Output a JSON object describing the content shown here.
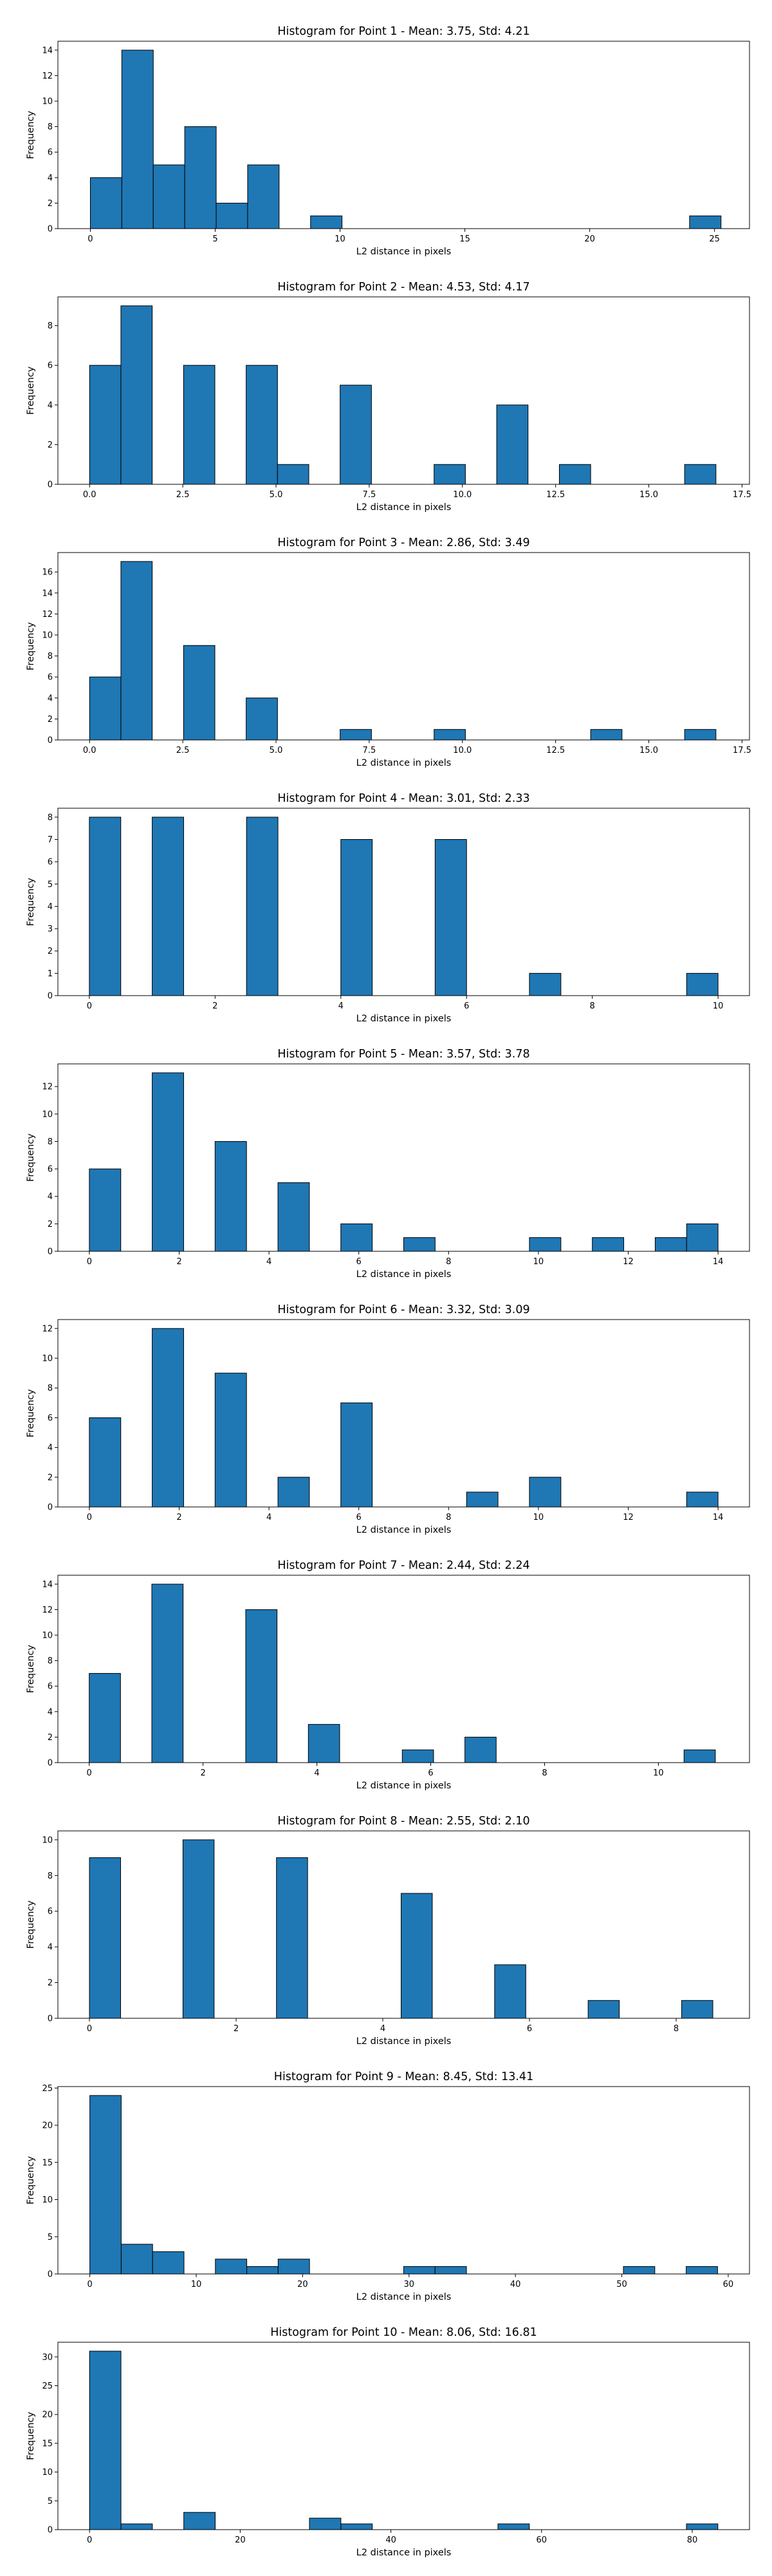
{
  "figure": {
    "background": "#ffffff",
    "bar_color": "#1f77b4",
    "edge_color": "#000000"
  },
  "chart_data": [
    {
      "type": "bar",
      "title": "Histogram for Point 1 - Mean: 3.75, Std: 4.21",
      "xlabel": "L2 distance in pixels",
      "ylabel": "Frequency",
      "xlim": [
        -1.3,
        26.4
      ],
      "ylim": [
        0,
        14.7
      ],
      "xticks": [
        0,
        5,
        10,
        15,
        20,
        25
      ],
      "yticks": [
        0,
        2,
        4,
        6,
        8,
        10,
        12,
        14
      ],
      "grid": false,
      "bins": [
        {
          "x0": 0.0,
          "x1": 1.26,
          "count": 4
        },
        {
          "x0": 1.26,
          "x1": 2.52,
          "count": 14
        },
        {
          "x0": 2.52,
          "x1": 3.78,
          "count": 5
        },
        {
          "x0": 3.78,
          "x1": 5.04,
          "count": 8
        },
        {
          "x0": 5.04,
          "x1": 6.3,
          "count": 2
        },
        {
          "x0": 6.3,
          "x1": 7.56,
          "count": 5
        },
        {
          "x0": 8.82,
          "x1": 10.08,
          "count": 1
        },
        {
          "x0": 24.0,
          "x1": 25.26,
          "count": 1
        }
      ]
    },
    {
      "type": "bar",
      "title": "Histogram for Point 2 - Mean: 4.53, Std: 4.17",
      "xlabel": "L2 distance in pixels",
      "ylabel": "Frequency",
      "xlim": [
        -0.85,
        17.7
      ],
      "ylim": [
        0,
        9.45
      ],
      "xticks": [
        0.0,
        2.5,
        5.0,
        7.5,
        10.0,
        12.5,
        15.0,
        17.5
      ],
      "xtick_labels": [
        "0.0",
        "2.5",
        "5.0",
        "7.5",
        "10.0",
        "12.5",
        "15.0",
        "17.5"
      ],
      "yticks": [
        0,
        2,
        4,
        6,
        8
      ],
      "grid": false,
      "bins": [
        {
          "x0": 0.0,
          "x1": 0.84,
          "count": 6
        },
        {
          "x0": 0.84,
          "x1": 1.68,
          "count": 9
        },
        {
          "x0": 2.52,
          "x1": 3.36,
          "count": 6
        },
        {
          "x0": 4.2,
          "x1": 5.04,
          "count": 6
        },
        {
          "x0": 5.04,
          "x1": 5.88,
          "count": 1
        },
        {
          "x0": 6.72,
          "x1": 7.56,
          "count": 5
        },
        {
          "x0": 9.24,
          "x1": 10.08,
          "count": 1
        },
        {
          "x0": 10.92,
          "x1": 11.76,
          "count": 4
        },
        {
          "x0": 12.6,
          "x1": 13.44,
          "count": 1
        },
        {
          "x0": 15.96,
          "x1": 16.8,
          "count": 1
        }
      ]
    },
    {
      "type": "bar",
      "title": "Histogram for Point 3 - Mean: 2.86, Std: 3.49",
      "xlabel": "L2 distance in pixels",
      "ylabel": "Frequency",
      "xlim": [
        -0.85,
        17.7
      ],
      "ylim": [
        0,
        17.85
      ],
      "xticks": [
        0.0,
        2.5,
        5.0,
        7.5,
        10.0,
        12.5,
        15.0,
        17.5
      ],
      "xtick_labels": [
        "0.0",
        "2.5",
        "5.0",
        "7.5",
        "10.0",
        "12.5",
        "15.0",
        "17.5"
      ],
      "yticks": [
        0,
        2,
        4,
        6,
        8,
        10,
        12,
        14,
        16
      ],
      "grid": false,
      "bins": [
        {
          "x0": 0.0,
          "x1": 0.84,
          "count": 6
        },
        {
          "x0": 0.84,
          "x1": 1.68,
          "count": 17
        },
        {
          "x0": 2.52,
          "x1": 3.36,
          "count": 9
        },
        {
          "x0": 4.2,
          "x1": 5.04,
          "count": 4
        },
        {
          "x0": 6.72,
          "x1": 7.56,
          "count": 1
        },
        {
          "x0": 9.24,
          "x1": 10.08,
          "count": 1
        },
        {
          "x0": 13.44,
          "x1": 14.28,
          "count": 1
        },
        {
          "x0": 15.96,
          "x1": 16.8,
          "count": 1
        }
      ]
    },
    {
      "type": "bar",
      "title": "Histogram for Point 4 - Mean: 3.01, Std: 2.33",
      "xlabel": "L2 distance in pixels",
      "ylabel": "Frequency",
      "xlim": [
        -0.5,
        10.5
      ],
      "ylim": [
        0,
        8.4
      ],
      "xticks": [
        0,
        2,
        4,
        6,
        8,
        10
      ],
      "yticks": [
        0,
        1,
        2,
        3,
        4,
        5,
        6,
        7,
        8
      ],
      "grid": false,
      "bins": [
        {
          "x0": 0.0,
          "x1": 0.5,
          "count": 8
        },
        {
          "x0": 1.0,
          "x1": 1.5,
          "count": 8
        },
        {
          "x0": 2.5,
          "x1": 3.0,
          "count": 8
        },
        {
          "x0": 4.0,
          "x1": 4.5,
          "count": 7
        },
        {
          "x0": 5.5,
          "x1": 6.0,
          "count": 7
        },
        {
          "x0": 7.0,
          "x1": 7.5,
          "count": 1
        },
        {
          "x0": 9.5,
          "x1": 10.0,
          "count": 1
        }
      ]
    },
    {
      "type": "bar",
      "title": "Histogram for Point 5 - Mean: 3.57, Std: 3.78",
      "xlabel": "L2 distance in pixels",
      "ylabel": "Frequency",
      "xlim": [
        -0.7,
        14.7
      ],
      "ylim": [
        0,
        13.65
      ],
      "xticks": [
        0,
        2,
        4,
        6,
        8,
        10,
        12,
        14
      ],
      "yticks": [
        0,
        2,
        4,
        6,
        8,
        10,
        12
      ],
      "grid": false,
      "bins": [
        {
          "x0": 0.0,
          "x1": 0.7,
          "count": 6
        },
        {
          "x0": 1.4,
          "x1": 2.1,
          "count": 13
        },
        {
          "x0": 2.8,
          "x1": 3.5,
          "count": 8
        },
        {
          "x0": 4.2,
          "x1": 4.9,
          "count": 5
        },
        {
          "x0": 5.6,
          "x1": 6.3,
          "count": 2
        },
        {
          "x0": 7.0,
          "x1": 7.7,
          "count": 1
        },
        {
          "x0": 9.8,
          "x1": 10.5,
          "count": 1
        },
        {
          "x0": 11.2,
          "x1": 11.9,
          "count": 1
        },
        {
          "x0": 12.6,
          "x1": 13.3,
          "count": 1
        },
        {
          "x0": 13.3,
          "x1": 14.0,
          "count": 2
        }
      ]
    },
    {
      "type": "bar",
      "title": "Histogram for Point 6 - Mean: 3.32, Std: 3.09",
      "xlabel": "L2 distance in pixels",
      "ylabel": "Frequency",
      "xlim": [
        -0.7,
        14.7
      ],
      "ylim": [
        0,
        12.6
      ],
      "xticks": [
        0,
        2,
        4,
        6,
        8,
        10,
        12,
        14
      ],
      "yticks": [
        0,
        2,
        4,
        6,
        8,
        10,
        12
      ],
      "grid": false,
      "bins": [
        {
          "x0": 0.0,
          "x1": 0.7,
          "count": 6
        },
        {
          "x0": 1.4,
          "x1": 2.1,
          "count": 12
        },
        {
          "x0": 2.8,
          "x1": 3.5,
          "count": 9
        },
        {
          "x0": 4.2,
          "x1": 4.9,
          "count": 2
        },
        {
          "x0": 5.6,
          "x1": 6.3,
          "count": 7
        },
        {
          "x0": 8.4,
          "x1": 9.1,
          "count": 1
        },
        {
          "x0": 9.8,
          "x1": 10.5,
          "count": 2
        },
        {
          "x0": 13.3,
          "x1": 14.0,
          "count": 1
        }
      ]
    },
    {
      "type": "bar",
      "title": "Histogram for Point 7 - Mean: 2.44, Std: 2.24",
      "xlabel": "L2 distance in pixels",
      "ylabel": "Frequency",
      "xlim": [
        -0.55,
        11.6
      ],
      "ylim": [
        0,
        14.7
      ],
      "xticks": [
        0,
        2,
        4,
        6,
        8,
        10
      ],
      "yticks": [
        0,
        2,
        4,
        6,
        8,
        10,
        12,
        14
      ],
      "grid": false,
      "bins": [
        {
          "x0": 0.0,
          "x1": 0.55,
          "count": 7
        },
        {
          "x0": 1.1,
          "x1": 1.65,
          "count": 14
        },
        {
          "x0": 2.75,
          "x1": 3.3,
          "count": 12
        },
        {
          "x0": 3.85,
          "x1": 4.4,
          "count": 3
        },
        {
          "x0": 5.5,
          "x1": 6.05,
          "count": 1
        },
        {
          "x0": 6.6,
          "x1": 7.15,
          "count": 2
        },
        {
          "x0": 10.45,
          "x1": 11.0,
          "count": 1
        }
      ]
    },
    {
      "type": "bar",
      "title": "Histogram for Point 8 - Mean: 2.55, Std: 2.10",
      "xlabel": "L2 distance in pixels",
      "ylabel": "Frequency",
      "xlim": [
        -0.43,
        9.0
      ],
      "ylim": [
        0,
        10.5
      ],
      "xticks": [
        0,
        2,
        4,
        6,
        8
      ],
      "yticks": [
        0,
        2,
        4,
        6,
        8,
        10
      ],
      "grid": false,
      "bins": [
        {
          "x0": 0.0,
          "x1": 0.425,
          "count": 9
        },
        {
          "x0": 1.275,
          "x1": 1.7,
          "count": 10
        },
        {
          "x0": 2.55,
          "x1": 2.975,
          "count": 9
        },
        {
          "x0": 4.25,
          "x1": 4.675,
          "count": 7
        },
        {
          "x0": 5.525,
          "x1": 5.95,
          "count": 3
        },
        {
          "x0": 6.8,
          "x1": 7.225,
          "count": 1
        },
        {
          "x0": 8.075,
          "x1": 8.5,
          "count": 1
        }
      ]
    },
    {
      "type": "bar",
      "title": "Histogram for Point 9 - Mean: 8.45, Std: 13.41",
      "xlabel": "L2 distance in pixels",
      "ylabel": "Frequency",
      "xlim": [
        -3.0,
        62.0
      ],
      "ylim": [
        0,
        25.2
      ],
      "xticks": [
        0,
        10,
        20,
        30,
        40,
        50,
        60
      ],
      "yticks": [
        0,
        5,
        10,
        15,
        20,
        25
      ],
      "grid": false,
      "bins": [
        {
          "x0": 0.0,
          "x1": 2.95,
          "count": 24
        },
        {
          "x0": 2.95,
          "x1": 5.9,
          "count": 4
        },
        {
          "x0": 5.9,
          "x1": 8.85,
          "count": 3
        },
        {
          "x0": 11.8,
          "x1": 14.75,
          "count": 2
        },
        {
          "x0": 14.75,
          "x1": 17.7,
          "count": 1
        },
        {
          "x0": 17.7,
          "x1": 20.65,
          "count": 2
        },
        {
          "x0": 29.5,
          "x1": 32.45,
          "count": 1
        },
        {
          "x0": 32.45,
          "x1": 35.4,
          "count": 1
        },
        {
          "x0": 50.15,
          "x1": 53.1,
          "count": 1
        },
        {
          "x0": 56.05,
          "x1": 59.0,
          "count": 1
        }
      ]
    },
    {
      "type": "bar",
      "title": "Histogram for Point 10 - Mean: 8.06, Std: 16.81",
      "xlabel": "L2 distance in pixels",
      "ylabel": "Frequency",
      "xlim": [
        -4.2,
        87.6
      ],
      "ylim": [
        0,
        32.55
      ],
      "xticks": [
        0,
        20,
        40,
        60,
        80
      ],
      "yticks": [
        0,
        5,
        10,
        15,
        20,
        25,
        30
      ],
      "grid": false,
      "bins": [
        {
          "x0": 0.0,
          "x1": 4.17,
          "count": 31
        },
        {
          "x0": 4.17,
          "x1": 8.34,
          "count": 1
        },
        {
          "x0": 12.51,
          "x1": 16.68,
          "count": 3
        },
        {
          "x0": 29.19,
          "x1": 33.36,
          "count": 2
        },
        {
          "x0": 33.36,
          "x1": 37.53,
          "count": 1
        },
        {
          "x0": 54.21,
          "x1": 58.38,
          "count": 1
        },
        {
          "x0": 79.23,
          "x1": 83.4,
          "count": 1
        }
      ]
    }
  ]
}
